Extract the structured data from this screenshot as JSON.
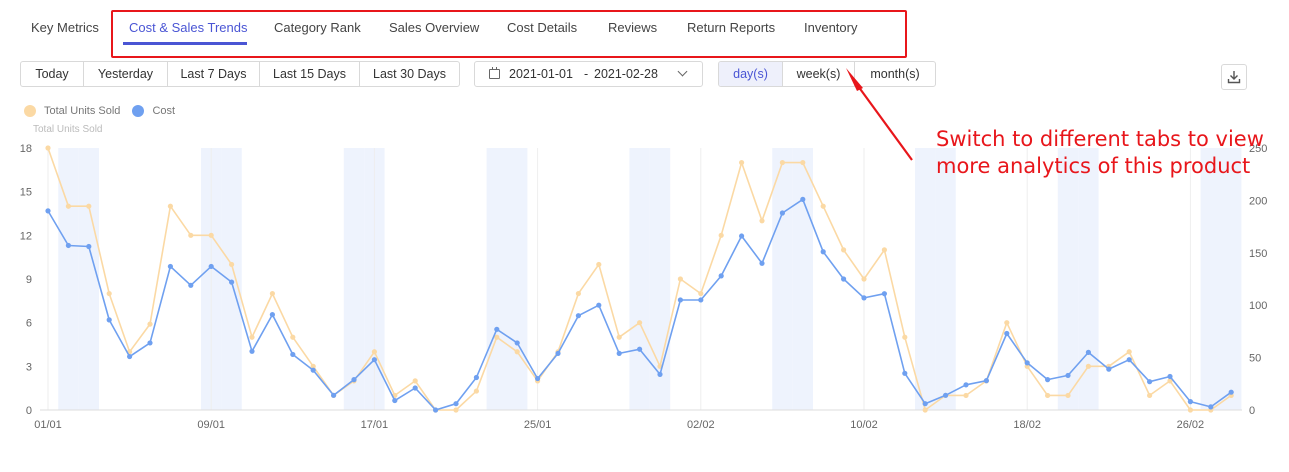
{
  "tabs": [
    {
      "label": "Key Metrics",
      "active": false
    },
    {
      "label": "Cost & Sales Trends",
      "active": true
    },
    {
      "label": "Category Rank",
      "active": false
    },
    {
      "label": "Sales Overview",
      "active": false
    },
    {
      "label": "Cost Details",
      "active": false
    },
    {
      "label": "Reviews",
      "active": false
    },
    {
      "label": "Return Reports",
      "active": false
    },
    {
      "label": "Inventory",
      "active": false
    }
  ],
  "quick_ranges": [
    "Today",
    "Yesterday",
    "Last 7 Days",
    "Last 15 Days",
    "Last 30 Days"
  ],
  "quick_range_active": "Today",
  "date_range": {
    "start": "2021-01-01",
    "separator": "-",
    "end": "2021-02-28"
  },
  "granularity": [
    {
      "label": "day(s)",
      "active": true
    },
    {
      "label": "week(s)",
      "active": false
    },
    {
      "label": "month(s)",
      "active": false
    }
  ],
  "download_icon": "download-icon",
  "callout": {
    "line1": "Switch to different tabs to view",
    "line2": "more analytics of this product"
  },
  "colors": {
    "accent": "#4a55d4",
    "units": "#fbd9a4",
    "cost": "#6fa0f0",
    "annotation": "#e8161b",
    "weekend": "#eef3fd"
  },
  "chart_data": {
    "type": "line",
    "legend_position": "top-left",
    "legend_subtitle": "Total Units Sold",
    "x_tick_labels": [
      "01/01",
      "09/01",
      "17/01",
      "25/01",
      "02/02",
      "10/02",
      "18/02",
      "26/02"
    ],
    "y_left": {
      "ticks": [
        0,
        3,
        6,
        9,
        12,
        15,
        18
      ],
      "range": [
        0,
        18
      ]
    },
    "y_right": {
      "ticks": [
        0,
        50,
        100,
        150,
        200,
        250
      ],
      "range": [
        0,
        250
      ]
    },
    "grid": "vertical",
    "series": [
      {
        "name": "Total Units Sold",
        "axis": "left",
        "values": [
          18,
          14,
          14,
          8,
          4,
          5.9,
          14,
          12,
          12,
          10,
          5,
          8,
          5,
          3,
          1,
          2,
          4,
          1,
          2,
          0,
          0,
          1.3,
          5,
          4,
          2,
          4,
          8,
          10,
          5,
          6,
          3,
          9,
          8,
          12,
          17,
          13,
          17,
          17,
          14,
          11,
          9,
          11,
          5,
          0,
          1,
          1,
          2,
          6,
          3,
          1,
          1,
          3,
          3,
          4,
          1,
          2,
          0,
          0,
          1
        ]
      },
      {
        "name": "Cost",
        "axis": "right",
        "values": [
          190,
          157,
          156,
          86,
          51,
          64,
          137,
          119,
          137,
          122,
          56,
          91,
          53,
          38,
          14,
          29,
          48,
          9,
          21,
          0,
          6,
          31,
          77,
          64,
          30,
          54,
          90,
          100,
          54,
          58,
          34,
          105,
          105,
          128,
          166,
          140,
          188,
          201,
          151,
          125,
          107,
          111,
          35,
          6,
          14,
          24,
          28,
          73,
          45,
          29,
          33,
          55,
          39,
          48,
          27,
          32,
          8,
          3,
          17
        ]
      }
    ]
  }
}
